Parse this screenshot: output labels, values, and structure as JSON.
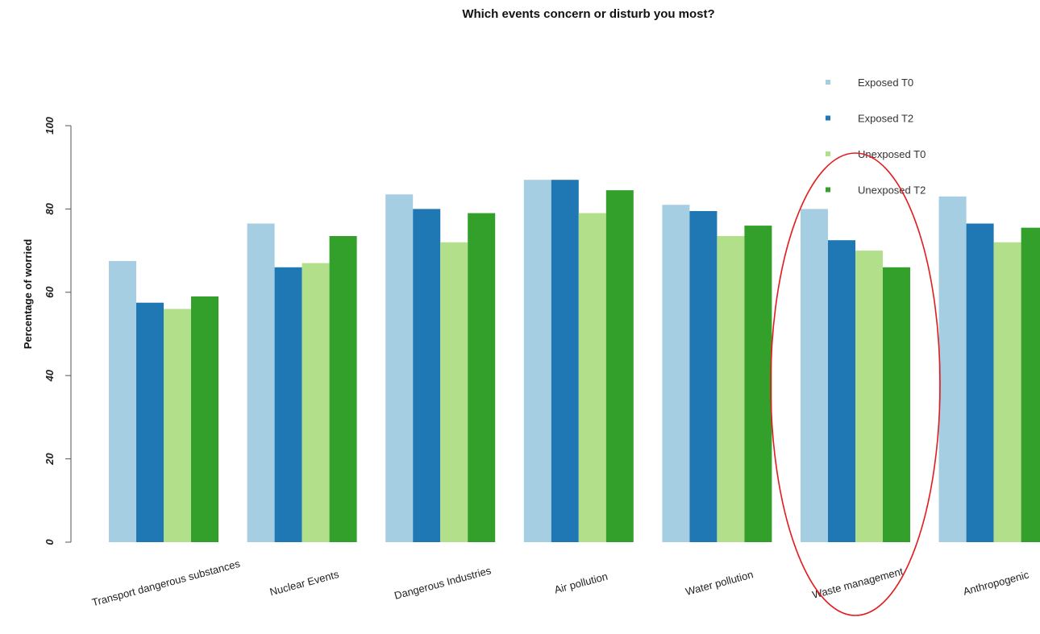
{
  "chart_data": {
    "type": "bar",
    "title": "Which events concern or disturb you most?",
    "xlabel": "",
    "ylabel": "Percentage of worried",
    "ylim": [
      0,
      100
    ],
    "yticks": [
      "0",
      "20",
      "40",
      "60",
      "80",
      "100"
    ],
    "grid": false,
    "legend_position": "top-right",
    "categories": [
      "Transport dangerous substances",
      "Nuclear Events",
      "Dangerous Industries",
      "Air pollution",
      "Water pollution",
      "Waste management",
      "Anthropogenic"
    ],
    "series": [
      {
        "name": "Exposed T0",
        "color": "#a6cee3",
        "values": [
          67.5,
          76.5,
          83.5,
          87,
          81,
          80,
          83
        ]
      },
      {
        "name": "Exposed T2",
        "color": "#1f78b4",
        "values": [
          57.5,
          66,
          80,
          87,
          79.5,
          72.5,
          76.5
        ]
      },
      {
        "name": "Unexposed T0",
        "color": "#b2df8a",
        "values": [
          56,
          67,
          72,
          79,
          73.5,
          70,
          72
        ]
      },
      {
        "name": "Unexposed T2",
        "color": "#33a02c",
        "values": [
          59,
          73.5,
          79,
          84.5,
          76,
          66,
          75.5
        ]
      }
    ],
    "annotations": [
      {
        "type": "ellipse",
        "color": "#e41a1c",
        "target": "Waste management"
      }
    ]
  }
}
